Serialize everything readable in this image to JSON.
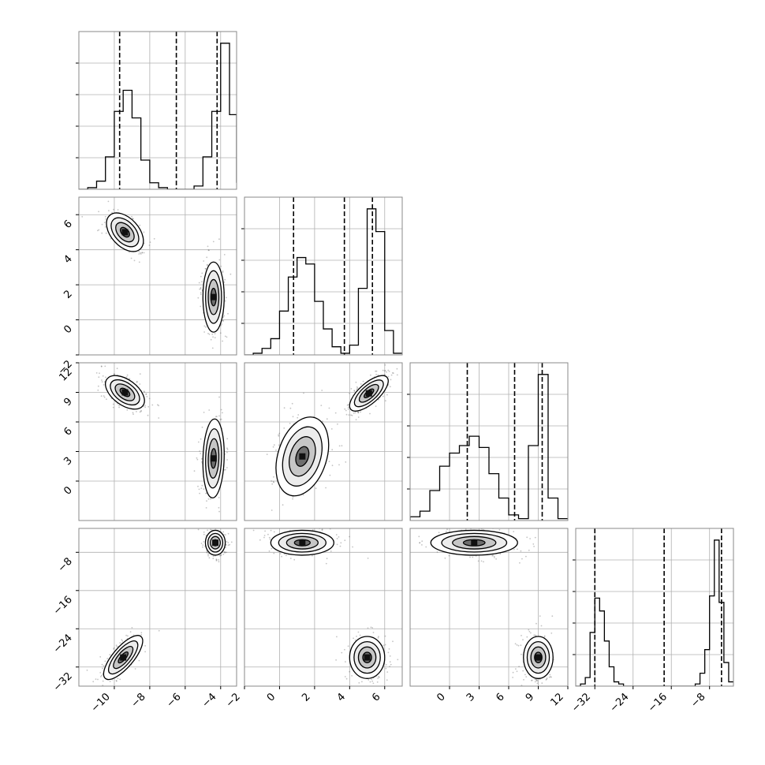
{
  "chart_data": {
    "type": "corner",
    "parameters": 4,
    "grid": true,
    "quantile_lines": "dashed",
    "axes": [
      {
        "index": 0,
        "range": [
          -12,
          -3.1
        ],
        "ticks": [
          -10,
          -8,
          -6,
          -4
        ],
        "tick_labels": [
          "−10",
          "−8",
          "−6",
          "−4"
        ],
        "quantiles": [
          -9.7,
          -6.5,
          -4.2
        ]
      },
      {
        "index": 1,
        "range": [
          -2,
          7
        ],
        "ticks": [
          -2,
          0,
          2,
          4,
          6
        ],
        "tick_labels": [
          "−2",
          "0",
          "2",
          "4",
          "6"
        ],
        "quantiles": [
          0.8,
          3.7,
          5.3
        ]
      },
      {
        "index": 2,
        "range": [
          -4,
          12
        ],
        "ticks": [
          0,
          3,
          6,
          9,
          12
        ],
        "tick_labels": [
          "0",
          "3",
          "6",
          "9",
          "12"
        ],
        "quantiles": [
          1.8,
          6.6,
          9.4
        ]
      },
      {
        "index": 3,
        "range": [
          -36,
          -3
        ],
        "ticks": [
          -32,
          -24,
          -16,
          -8
        ],
        "tick_labels": [
          "−32",
          "−24",
          "−16",
          "−8"
        ],
        "quantiles": [
          -32,
          -17.5,
          -5.5
        ]
      }
    ],
    "histograms": [
      {
        "param": 0,
        "bins": [
          -12,
          -11.5,
          -11,
          -10.5,
          -10,
          -9.5,
          -9,
          -8.5,
          -8,
          -7.5,
          -7,
          -6.5,
          -6,
          -5.5,
          -5,
          -4.5,
          -4,
          -3.5,
          -3.1
        ],
        "counts": [
          0,
          0.01,
          0.05,
          0.2,
          0.48,
          0.61,
          0.44,
          0.18,
          0.04,
          0.01,
          0,
          0,
          0,
          0.02,
          0.2,
          0.48,
          0.9,
          0.46,
          0.04
        ]
      },
      {
        "param": 1,
        "bins": [
          -2,
          -1.5,
          -1,
          -0.5,
          0,
          0.5,
          1,
          1.5,
          2,
          2.5,
          3,
          3.5,
          4,
          4.5,
          5,
          5.5,
          6,
          6.5,
          7
        ],
        "counts": [
          0,
          0.01,
          0.04,
          0.1,
          0.27,
          0.48,
          0.6,
          0.56,
          0.33,
          0.16,
          0.05,
          0.01,
          0.06,
          0.41,
          0.9,
          0.76,
          0.15,
          0.01
        ]
      },
      {
        "param": 2,
        "bins": [
          -4,
          -3,
          -2,
          -1,
          0,
          1,
          2,
          3,
          4,
          5,
          6,
          7,
          8,
          9,
          10,
          11,
          12
        ],
        "counts": [
          0.02,
          0.05,
          0.16,
          0.29,
          0.36,
          0.4,
          0.45,
          0.39,
          0.25,
          0.12,
          0.03,
          0.01,
          0.4,
          0.78,
          0.12,
          0.01
        ]
      },
      {
        "param": 3,
        "bins": [
          -36,
          -35,
          -34,
          -33,
          -32,
          -31,
          -30,
          -29,
          -28,
          -27,
          -26,
          -25,
          -24,
          -23,
          -22,
          -21,
          -20,
          -19,
          -18,
          -17,
          -16,
          -15,
          -14,
          -13,
          -12,
          -11,
          -10,
          -9,
          -8,
          -7,
          -6,
          -5,
          -4,
          -3
        ],
        "counts": [
          0,
          0.01,
          0.04,
          0.25,
          0.41,
          0.35,
          0.21,
          0.09,
          0.02,
          0.01,
          0,
          0,
          0,
          0,
          0,
          0,
          0,
          0,
          0,
          0,
          0,
          0,
          0,
          0,
          0,
          0.01,
          0.06,
          0.17,
          0.42,
          0.68,
          0.39,
          0.11,
          0.02
        ]
      }
    ],
    "clusters": [
      {
        "x": 0,
        "y": 1,
        "cx": -9.4,
        "cy": 5.0,
        "sx": 0.52,
        "sy": 0.55,
        "rho": -0.45
      },
      {
        "x": 0,
        "y": 1,
        "cx": -4.4,
        "cy": 1.3,
        "sx": 0.3,
        "sy": 1.0,
        "rho": 0
      },
      {
        "x": 0,
        "y": 2,
        "cx": -9.4,
        "cy": 9.0,
        "sx": 0.55,
        "sy": 0.85,
        "rho": -0.5
      },
      {
        "x": 0,
        "y": 2,
        "cx": -4.4,
        "cy": 2.3,
        "sx": 0.3,
        "sy": 2.0,
        "rho": 0.1
      },
      {
        "x": 0,
        "y": 3,
        "cx": -9.5,
        "cy": -30.0,
        "sx": 0.55,
        "sy": 2.3,
        "rho": 0.75
      },
      {
        "x": 0,
        "y": 3,
        "cx": -4.3,
        "cy": -6.0,
        "sx": 0.28,
        "sy": 1.3,
        "rho": 0
      },
      {
        "x": 1,
        "y": 2,
        "cx": 5.1,
        "cy": 8.9,
        "sx": 0.55,
        "sy": 0.9,
        "rho": 0.7
      },
      {
        "x": 1,
        "y": 2,
        "cx": 1.3,
        "cy": 2.5,
        "sx": 0.75,
        "sy": 2.0,
        "rho": 0.3
      },
      {
        "x": 1,
        "y": 3,
        "cx": 1.3,
        "cy": -6.0,
        "sx": 0.9,
        "sy": 1.3,
        "rho": 0
      },
      {
        "x": 1,
        "y": 3,
        "cx": 5.0,
        "cy": -30.0,
        "sx": 0.5,
        "sy": 2.2,
        "rho": 0
      },
      {
        "x": 2,
        "y": 3,
        "cx": 2.5,
        "cy": -6.0,
        "sx": 2.2,
        "sy": 1.3,
        "rho": 0
      },
      {
        "x": 2,
        "y": 3,
        "cx": 9.0,
        "cy": -30.0,
        "sx": 0.75,
        "sy": 2.2,
        "rho": 0
      }
    ]
  }
}
